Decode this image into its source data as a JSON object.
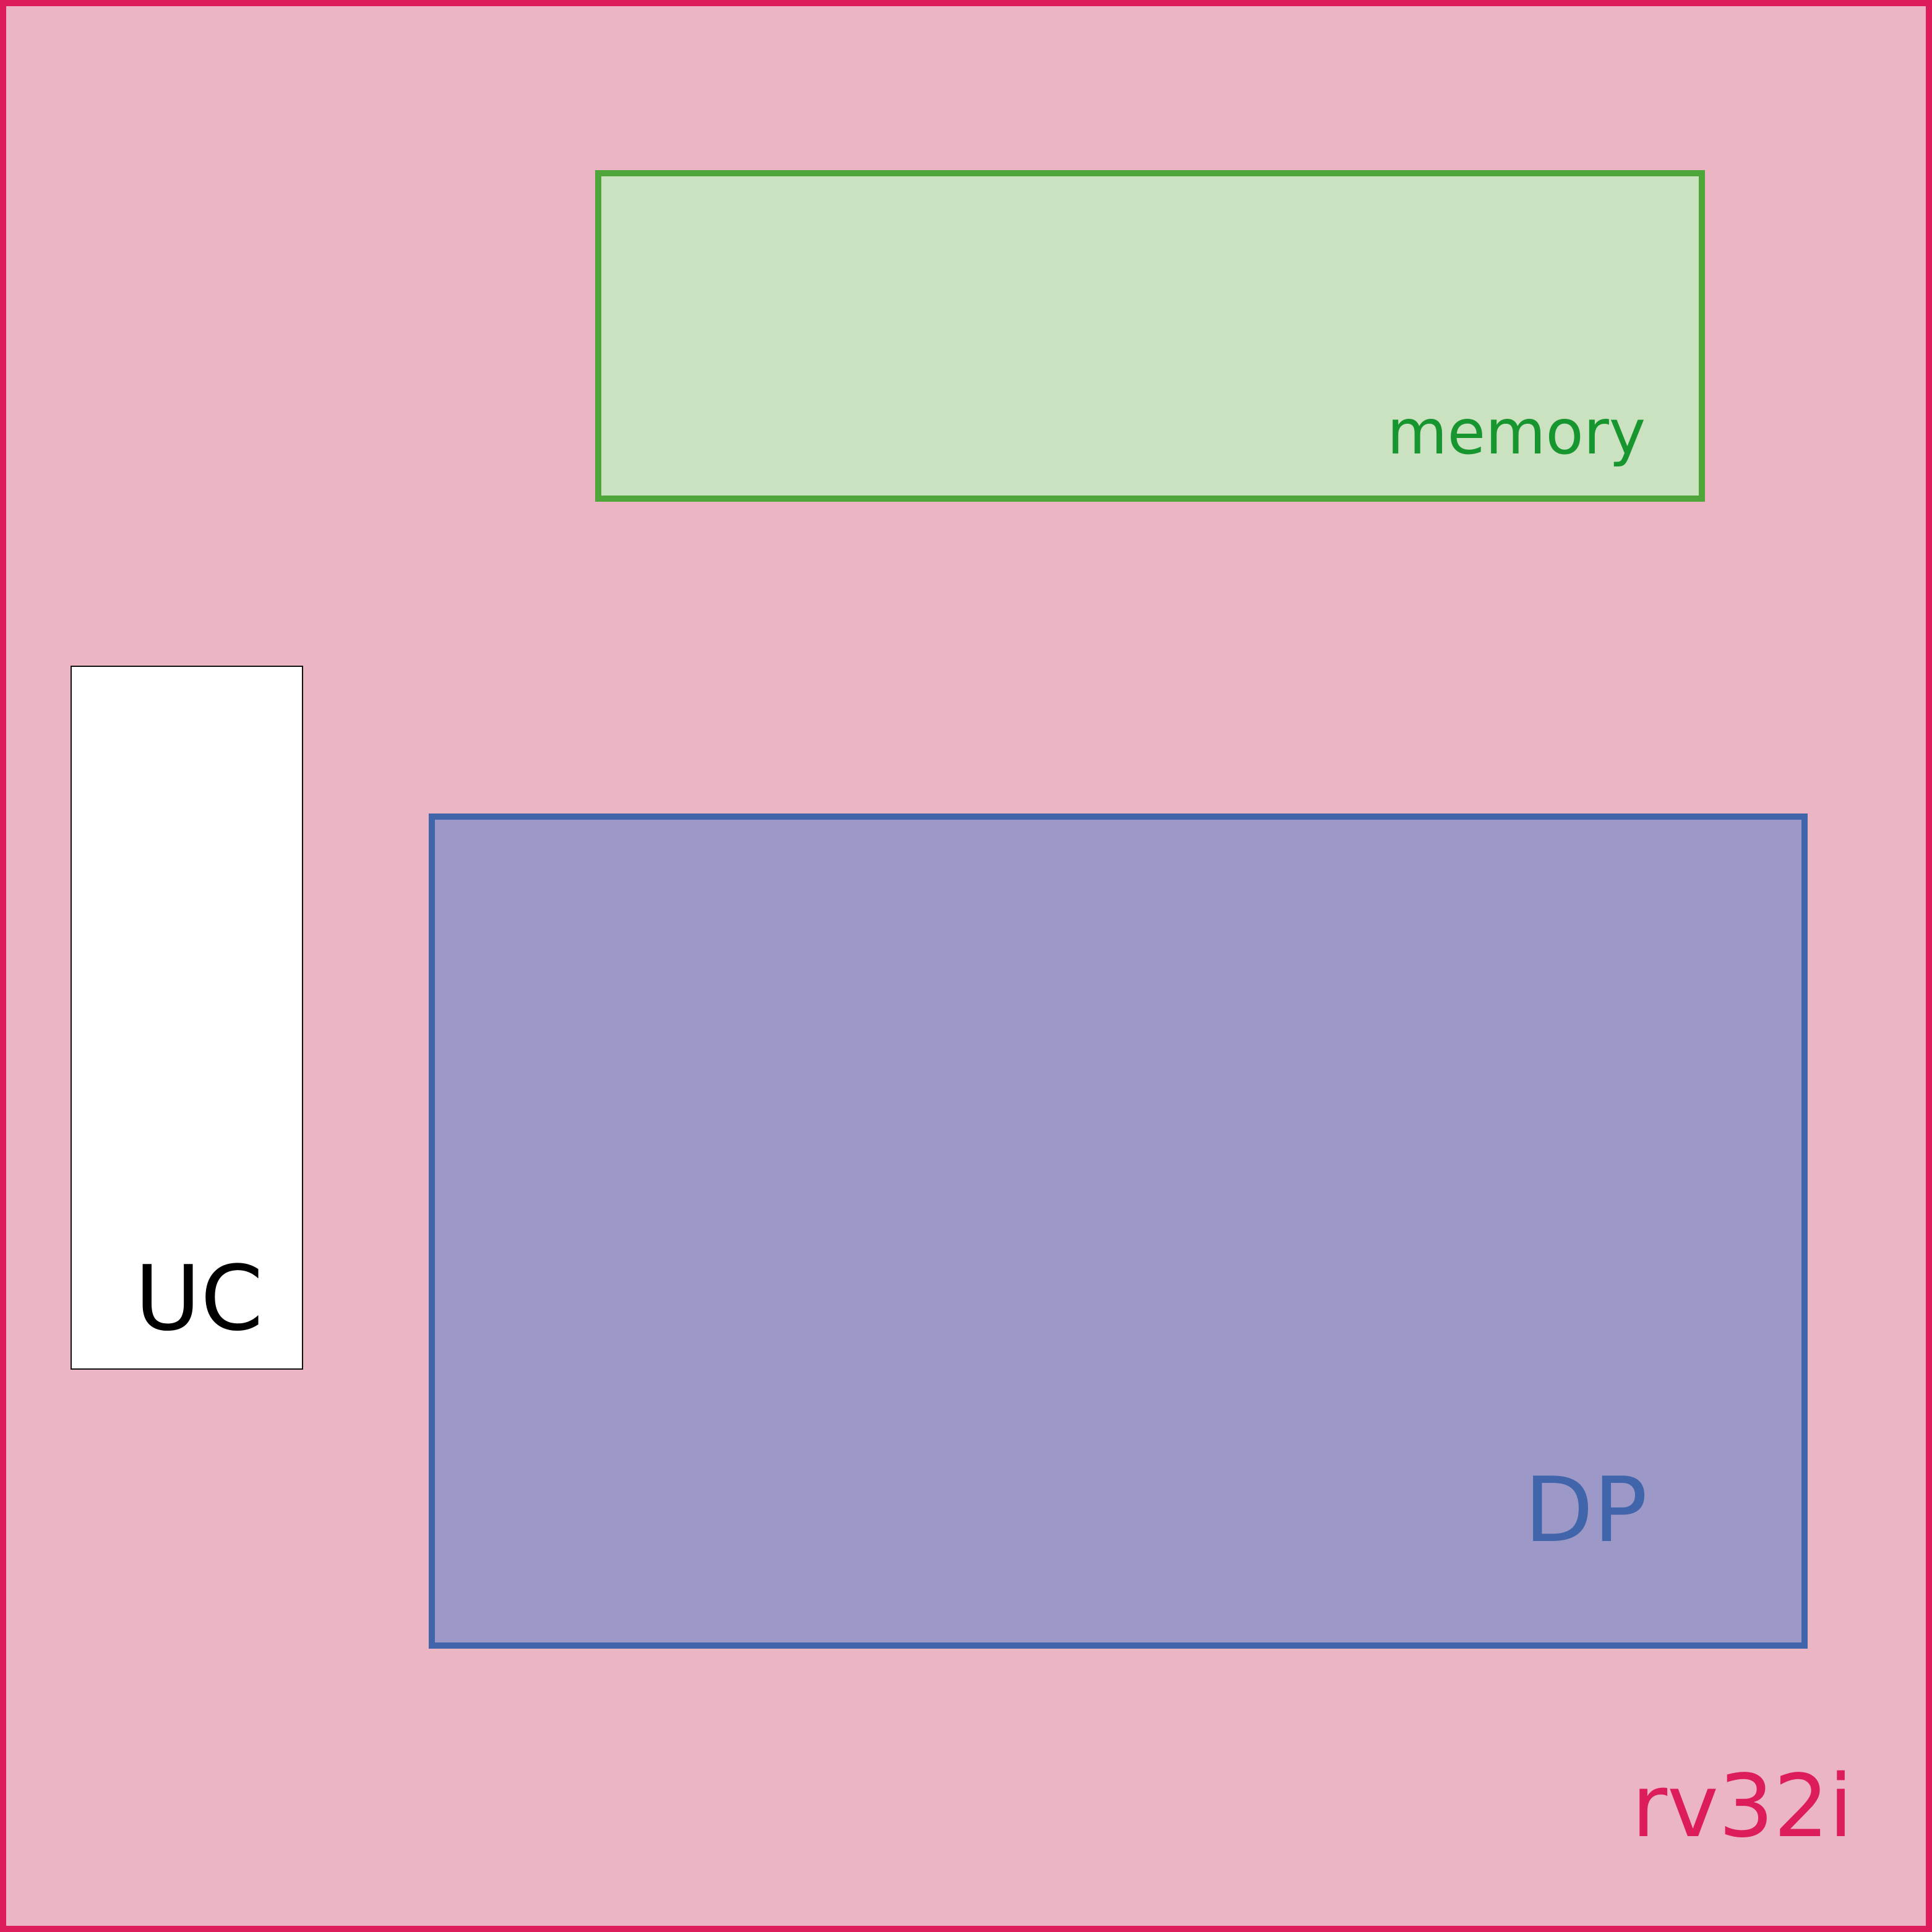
{
  "diagram": {
    "blocks": {
      "memory": {
        "label": "memory",
        "color": "#4ea63b",
        "fill": "#cbe2c1"
      },
      "uc": {
        "label": "UC",
        "color": "#111111",
        "fill": "#ffffff"
      },
      "dp": {
        "label": "DP",
        "color": "#4165aa",
        "fill": "#9c98c7"
      }
    },
    "outer": {
      "label": "rv32i",
      "color": "#dd1c5b",
      "fill": "#ecb5c4"
    }
  }
}
